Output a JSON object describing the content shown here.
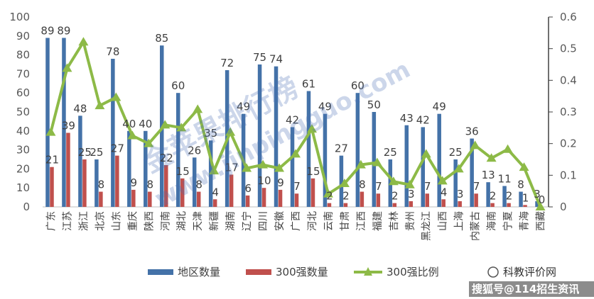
{
  "chart_data": {
    "type": "bar",
    "categories": [
      "广东",
      "江苏",
      "浙江",
      "北京",
      "山东",
      "重庆",
      "陕西",
      "河南",
      "湖北",
      "天津",
      "新疆",
      "湖南",
      "辽宁",
      "四川",
      "安徽",
      "广西",
      "河北",
      "云南",
      "甘肃",
      "江西",
      "福建",
      "吉林",
      "贵州",
      "黑龙江",
      "山西",
      "上海",
      "内蒙古",
      "海南",
      "宁夏",
      "青海",
      "西藏"
    ],
    "series": [
      {
        "name": "地区数量",
        "axis": "left",
        "color": "#4472a8",
        "values": [
          89,
          89,
          48,
          25,
          78,
          40,
          40,
          85,
          60,
          26,
          35,
          72,
          49,
          75,
          74,
          42,
          61,
          49,
          27,
          60,
          50,
          25,
          43,
          42,
          49,
          25,
          36,
          13,
          11,
          8,
          3
        ]
      },
      {
        "name": "300强数量",
        "axis": "left",
        "color": "#c0504d",
        "values": [
          21,
          39,
          25,
          8,
          27,
          9,
          8,
          22,
          15,
          8,
          4,
          17,
          6,
          10,
          9,
          7,
          15,
          2,
          2,
          8,
          7,
          2,
          3,
          7,
          4,
          3,
          7,
          2,
          2,
          1,
          0
        ]
      },
      {
        "name": "300强比例",
        "axis": "right",
        "type": "line",
        "color": "#8dba47",
        "values": [
          0.236,
          0.438,
          0.521,
          0.32,
          0.346,
          0.225,
          0.2,
          0.259,
          0.25,
          0.308,
          0.114,
          0.236,
          0.122,
          0.133,
          0.122,
          0.167,
          0.246,
          0.041,
          0.074,
          0.133,
          0.14,
          0.08,
          0.07,
          0.167,
          0.082,
          0.12,
          0.194,
          0.154,
          0.182,
          0.125,
          0.0
        ]
      }
    ],
    "bar_labels_series1": [
      "89",
      "89",
      "48",
      "25",
      "78",
      "40",
      "40",
      "85",
      "60",
      "26",
      "35",
      "72",
      "49",
      "75",
      "74",
      "42",
      "61",
      "49",
      "27",
      "60",
      "50",
      "25",
      "43",
      "42",
      "49",
      "25",
      "36",
      "13",
      "11",
      "8",
      "3"
    ],
    "bar_labels_series2": [
      "21",
      "39",
      "25",
      "8",
      "27",
      "9",
      "8",
      "22",
      "15",
      "8",
      "4",
      "17",
      "6",
      "10",
      "9",
      "7",
      "15",
      "2",
      "2",
      "8",
      "7",
      "2",
      "3",
      "7",
      "4",
      "3",
      "7",
      "2",
      "2",
      "1",
      "0"
    ],
    "left_axis": {
      "min": 0,
      "max": 100,
      "step": 10,
      "ticks": [
        "0",
        "10",
        "20",
        "30",
        "40",
        "50",
        "60",
        "70",
        "80",
        "90",
        "100"
      ]
    },
    "right_axis": {
      "min": 0,
      "max": 0.6,
      "step": 0.1,
      "ticks": [
        "0",
        "0.1",
        "0.2",
        "0.3",
        "0.4",
        "0.5",
        "0.6"
      ]
    },
    "title": "",
    "xlabel": "",
    "ylabel": "",
    "legend_position": "bottom",
    "grid": false
  },
  "legend": [
    {
      "label": "地区数量",
      "color": "#4472a8",
      "kind": "bar"
    },
    {
      "label": "300强数量",
      "color": "#c0504d",
      "kind": "bar"
    },
    {
      "label": "300强比例",
      "color": "#8dba47",
      "kind": "line"
    }
  ],
  "watermark": {
    "line1": "金苹果排行榜",
    "line2": "www.jinpingguo.com"
  },
  "source": {
    "line1": "科教评价网",
    "line2": "搜狐号@114招生资讯"
  }
}
